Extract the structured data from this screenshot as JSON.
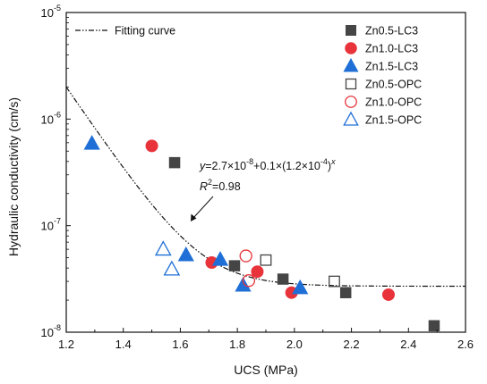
{
  "chart_data": {
    "type": "scatter",
    "xlabel": "UCS (MPa)",
    "ylabel": "Hydraulic conductivity (cm/s)",
    "xlim": [
      1.2,
      2.6
    ],
    "ylim": [
      1e-08,
      1e-05
    ],
    "yscale": "log",
    "x_ticks": [
      1.2,
      1.4,
      1.6,
      1.8,
      2.0,
      2.2,
      2.4,
      2.6
    ],
    "x_tick_labels": [
      "1.2",
      "1.4",
      "1.6",
      "1.8",
      "2.0",
      "2.2",
      "2.4",
      "2.6"
    ],
    "y_ticks": [
      1e-08,
      1e-07,
      1e-06,
      1e-05
    ],
    "y_tick_labels": [
      {
        "base": "10",
        "exp": "-8"
      },
      {
        "base": "10",
        "exp": "-7"
      },
      {
        "base": "10",
        "exp": "-6"
      },
      {
        "base": "10",
        "exp": "-5"
      }
    ],
    "grid": false,
    "legend_position": "top-right",
    "fit_legend_label": "Fitting curve",
    "fit": {
      "a": 2.7e-08,
      "b": 0.1,
      "c": 0.00012,
      "x_range": [
        1.2,
        2.6
      ],
      "equation_text": {
        "y": "y",
        "eq1": "=2.7×10",
        "e1": "-8",
        "eq2": "+0.1×(1.2×10",
        "e2": "-4",
        "eq3": ")",
        "ex": "x"
      },
      "r2_text": {
        "R": "R",
        "sup": "2",
        "rest": "=0.98"
      }
    },
    "series": [
      {
        "name": "Zn0.5-LC3",
        "marker": "square",
        "filled": true,
        "color": "#454545",
        "points": [
          [
            1.58,
            3.9e-07
          ],
          [
            1.79,
            4.2e-08
          ],
          [
            1.96,
            3.15e-08
          ],
          [
            2.18,
            2.35e-08
          ],
          [
            2.49,
            1.15e-08
          ]
        ]
      },
      {
        "name": "Zn1.0-LC3",
        "marker": "circle",
        "filled": true,
        "color": "#e8333a",
        "points": [
          [
            1.5,
            5.6e-07
          ],
          [
            1.71,
            4.5e-08
          ],
          [
            1.87,
            3.7e-08
          ],
          [
            1.99,
            2.35e-08
          ],
          [
            2.33,
            2.25e-08
          ]
        ]
      },
      {
        "name": "Zn1.5-LC3",
        "marker": "triangle",
        "filled": true,
        "color": "#1f6fd6",
        "points": [
          [
            1.29,
            5.9e-07
          ],
          [
            1.62,
            5.3e-08
          ],
          [
            1.74,
            4.8e-08
          ],
          [
            1.82,
            2.75e-08
          ],
          [
            2.02,
            2.6e-08
          ]
        ]
      },
      {
        "name": "Zn0.5-OPC",
        "marker": "square",
        "filled": false,
        "color": "#454545",
        "points": [
          [
            1.9,
            4.75e-08
          ],
          [
            2.14,
            3e-08
          ]
        ]
      },
      {
        "name": "Zn1.0-OPC",
        "marker": "circle",
        "filled": false,
        "color": "#e8333a",
        "points": [
          [
            1.83,
            5.2e-08
          ],
          [
            1.84,
            3.05e-08
          ]
        ]
      },
      {
        "name": "Zn1.5-OPC",
        "marker": "triangle",
        "filled": false,
        "color": "#1f6fd6",
        "points": [
          [
            1.54,
            6e-08
          ],
          [
            1.57,
            3.9e-08
          ]
        ]
      }
    ]
  }
}
